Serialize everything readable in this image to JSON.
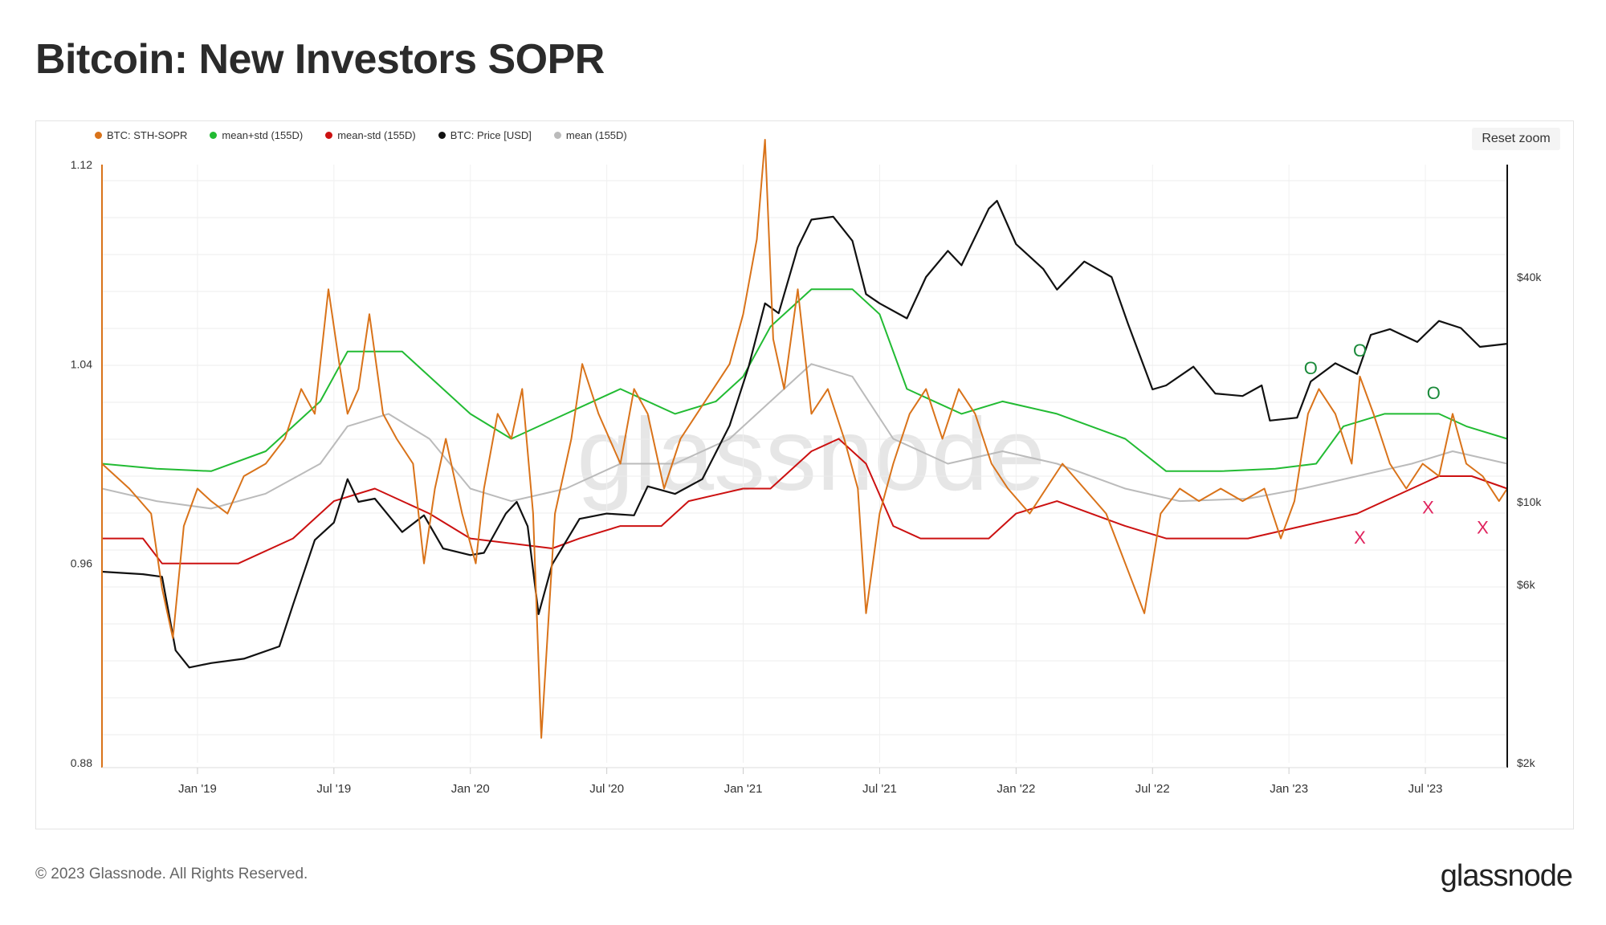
{
  "title": "Bitcoin: New Investors SOPR",
  "reset_zoom_label": "Reset zoom",
  "footer": {
    "copyright": "© 2023 Glassnode. All Rights Reserved.",
    "logo": "glassnode"
  },
  "watermark": "glassnode",
  "legend": [
    {
      "label": "BTC: STH-SOPR",
      "color": "#d9731a"
    },
    {
      "label": "mean+std (155D)",
      "color": "#22bb33"
    },
    {
      "label": "mean-std (155D)",
      "color": "#cc1111"
    },
    {
      "label": "BTC: Price [USD]",
      "color": "#111111"
    },
    {
      "label": "mean (155D)",
      "color": "#bbbbbb"
    }
  ],
  "chart_data": {
    "type": "line",
    "title": "Bitcoin: New Investors SOPR",
    "x_ticks": [
      "Jan '19",
      "Jul '19",
      "Jan '20",
      "Jul '20",
      "Jan '21",
      "Jul '21",
      "Jan '22",
      "Jul '22",
      "Jan '23",
      "Jul '23"
    ],
    "x_range": [
      2018.6,
      2023.75
    ],
    "left_axis": {
      "ticks": [
        "0.88",
        "0.96",
        "1.04",
        "1.12"
      ],
      "values": [
        0.88,
        0.96,
        1.04,
        1.12
      ],
      "range": [
        0.88,
        1.12
      ]
    },
    "right_axis": {
      "scale": "log",
      "ticks": [
        "$2k",
        "$6k",
        "$10k",
        "$40k"
      ],
      "values": [
        2000,
        6000,
        10000,
        40000
      ]
    },
    "series": [
      {
        "name": "BTC: STH-SOPR",
        "axis": "left",
        "color": "#d9731a",
        "points": [
          [
            2018.6,
            1.0
          ],
          [
            2018.7,
            0.99
          ],
          [
            2018.78,
            0.98
          ],
          [
            2018.82,
            0.95
          ],
          [
            2018.86,
            0.93
          ],
          [
            2018.9,
            0.975
          ],
          [
            2018.95,
            0.99
          ],
          [
            2019.0,
            0.985
          ],
          [
            2019.06,
            0.98
          ],
          [
            2019.12,
            0.995
          ],
          [
            2019.2,
            1.0
          ],
          [
            2019.27,
            1.01
          ],
          [
            2019.33,
            1.03
          ],
          [
            2019.38,
            1.02
          ],
          [
            2019.43,
            1.07
          ],
          [
            2019.47,
            1.04
          ],
          [
            2019.5,
            1.02
          ],
          [
            2019.54,
            1.03
          ],
          [
            2019.58,
            1.06
          ],
          [
            2019.63,
            1.02
          ],
          [
            2019.68,
            1.01
          ],
          [
            2019.74,
            1.0
          ],
          [
            2019.78,
            0.96
          ],
          [
            2019.82,
            0.99
          ],
          [
            2019.86,
            1.01
          ],
          [
            2019.92,
            0.98
          ],
          [
            2019.97,
            0.96
          ],
          [
            2020.0,
            0.99
          ],
          [
            2020.05,
            1.02
          ],
          [
            2020.1,
            1.01
          ],
          [
            2020.14,
            1.03
          ],
          [
            2020.18,
            0.98
          ],
          [
            2020.21,
            0.89
          ],
          [
            2020.26,
            0.98
          ],
          [
            2020.32,
            1.01
          ],
          [
            2020.36,
            1.04
          ],
          [
            2020.42,
            1.02
          ],
          [
            2020.5,
            1.0
          ],
          [
            2020.55,
            1.03
          ],
          [
            2020.6,
            1.02
          ],
          [
            2020.66,
            0.99
          ],
          [
            2020.72,
            1.01
          ],
          [
            2020.78,
            1.02
          ],
          [
            2020.84,
            1.03
          ],
          [
            2020.9,
            1.04
          ],
          [
            2020.95,
            1.06
          ],
          [
            2021.0,
            1.09
          ],
          [
            2021.03,
            1.13
          ],
          [
            2021.06,
            1.05
          ],
          [
            2021.1,
            1.03
          ],
          [
            2021.15,
            1.07
          ],
          [
            2021.2,
            1.02
          ],
          [
            2021.26,
            1.03
          ],
          [
            2021.32,
            1.01
          ],
          [
            2021.37,
            0.99
          ],
          [
            2021.4,
            0.94
          ],
          [
            2021.45,
            0.98
          ],
          [
            2021.5,
            1.0
          ],
          [
            2021.56,
            1.02
          ],
          [
            2021.62,
            1.03
          ],
          [
            2021.68,
            1.01
          ],
          [
            2021.74,
            1.03
          ],
          [
            2021.8,
            1.02
          ],
          [
            2021.86,
            1.0
          ],
          [
            2021.92,
            0.99
          ],
          [
            2022.0,
            0.98
          ],
          [
            2022.06,
            0.99
          ],
          [
            2022.12,
            1.0
          ],
          [
            2022.2,
            0.99
          ],
          [
            2022.28,
            0.98
          ],
          [
            2022.35,
            0.96
          ],
          [
            2022.42,
            0.94
          ],
          [
            2022.48,
            0.98
          ],
          [
            2022.55,
            0.99
          ],
          [
            2022.62,
            0.985
          ],
          [
            2022.7,
            0.99
          ],
          [
            2022.78,
            0.985
          ],
          [
            2022.86,
            0.99
          ],
          [
            2022.92,
            0.97
          ],
          [
            2022.97,
            0.985
          ],
          [
            2023.02,
            1.02
          ],
          [
            2023.06,
            1.03
          ],
          [
            2023.12,
            1.02
          ],
          [
            2023.18,
            1.0
          ],
          [
            2023.21,
            1.035
          ],
          [
            2023.26,
            1.02
          ],
          [
            2023.32,
            1.0
          ],
          [
            2023.38,
            0.99
          ],
          [
            2023.44,
            1.0
          ],
          [
            2023.5,
            0.995
          ],
          [
            2023.55,
            1.02
          ],
          [
            2023.6,
            1.0
          ],
          [
            2023.66,
            0.995
          ],
          [
            2023.72,
            0.985
          ],
          [
            2023.75,
            0.99
          ]
        ]
      },
      {
        "name": "mean+std (155D)",
        "axis": "left",
        "color": "#22bb33",
        "points": [
          [
            2018.6,
            1.0
          ],
          [
            2018.8,
            0.998
          ],
          [
            2019.0,
            0.997
          ],
          [
            2019.2,
            1.005
          ],
          [
            2019.4,
            1.025
          ],
          [
            2019.5,
            1.045
          ],
          [
            2019.7,
            1.045
          ],
          [
            2019.8,
            1.035
          ],
          [
            2019.95,
            1.02
          ],
          [
            2020.1,
            1.01
          ],
          [
            2020.3,
            1.02
          ],
          [
            2020.5,
            1.03
          ],
          [
            2020.7,
            1.02
          ],
          [
            2020.85,
            1.025
          ],
          [
            2020.95,
            1.035
          ],
          [
            2021.05,
            1.055
          ],
          [
            2021.2,
            1.07
          ],
          [
            2021.35,
            1.07
          ],
          [
            2021.45,
            1.06
          ],
          [
            2021.55,
            1.03
          ],
          [
            2021.75,
            1.02
          ],
          [
            2021.9,
            1.025
          ],
          [
            2022.1,
            1.02
          ],
          [
            2022.35,
            1.01
          ],
          [
            2022.5,
            0.997
          ],
          [
            2022.7,
            0.997
          ],
          [
            2022.9,
            0.998
          ],
          [
            2023.05,
            1.0
          ],
          [
            2023.15,
            1.015
          ],
          [
            2023.3,
            1.02
          ],
          [
            2023.5,
            1.02
          ],
          [
            2023.6,
            1.015
          ],
          [
            2023.75,
            1.01
          ]
        ]
      },
      {
        "name": "mean (155D)",
        "axis": "left",
        "color": "#bbbbbb",
        "points": [
          [
            2018.6,
            0.99
          ],
          [
            2018.8,
            0.985
          ],
          [
            2019.0,
            0.982
          ],
          [
            2019.2,
            0.988
          ],
          [
            2019.4,
            1.0
          ],
          [
            2019.5,
            1.015
          ],
          [
            2019.65,
            1.02
          ],
          [
            2019.8,
            1.01
          ],
          [
            2019.95,
            0.99
          ],
          [
            2020.1,
            0.985
          ],
          [
            2020.3,
            0.99
          ],
          [
            2020.5,
            1.0
          ],
          [
            2020.7,
            1.0
          ],
          [
            2020.9,
            1.01
          ],
          [
            2021.05,
            1.025
          ],
          [
            2021.2,
            1.04
          ],
          [
            2021.35,
            1.035
          ],
          [
            2021.5,
            1.01
          ],
          [
            2021.7,
            1.0
          ],
          [
            2021.9,
            1.005
          ],
          [
            2022.1,
            1.0
          ],
          [
            2022.35,
            0.99
          ],
          [
            2022.55,
            0.985
          ],
          [
            2022.8,
            0.986
          ],
          [
            2023.0,
            0.99
          ],
          [
            2023.2,
            0.995
          ],
          [
            2023.4,
            1.0
          ],
          [
            2023.55,
            1.005
          ],
          [
            2023.75,
            1.0
          ]
        ]
      },
      {
        "name": "mean-std (155D)",
        "axis": "left",
        "color": "#cc1111",
        "points": [
          [
            2018.6,
            0.97
          ],
          [
            2018.75,
            0.97
          ],
          [
            2018.82,
            0.96
          ],
          [
            2019.1,
            0.96
          ],
          [
            2019.3,
            0.97
          ],
          [
            2019.45,
            0.985
          ],
          [
            2019.6,
            0.99
          ],
          [
            2019.8,
            0.98
          ],
          [
            2019.95,
            0.97
          ],
          [
            2020.1,
            0.968
          ],
          [
            2020.25,
            0.966
          ],
          [
            2020.35,
            0.97
          ],
          [
            2020.5,
            0.975
          ],
          [
            2020.65,
            0.975
          ],
          [
            2020.75,
            0.985
          ],
          [
            2020.95,
            0.99
          ],
          [
            2021.05,
            0.99
          ],
          [
            2021.2,
            1.005
          ],
          [
            2021.3,
            1.01
          ],
          [
            2021.4,
            1.0
          ],
          [
            2021.5,
            0.975
          ],
          [
            2021.6,
            0.97
          ],
          [
            2021.75,
            0.97
          ],
          [
            2021.85,
            0.97
          ],
          [
            2021.95,
            0.98
          ],
          [
            2022.1,
            0.985
          ],
          [
            2022.35,
            0.975
          ],
          [
            2022.5,
            0.97
          ],
          [
            2022.8,
            0.97
          ],
          [
            2023.0,
            0.975
          ],
          [
            2023.2,
            0.98
          ],
          [
            2023.4,
            0.99
          ],
          [
            2023.5,
            0.995
          ],
          [
            2023.62,
            0.995
          ],
          [
            2023.75,
            0.99
          ]
        ]
      },
      {
        "name": "BTC: Price [USD]",
        "axis": "right",
        "color": "#111111",
        "points": [
          [
            2018.6,
            6500
          ],
          [
            2018.75,
            6400
          ],
          [
            2018.82,
            6300
          ],
          [
            2018.87,
            4000
          ],
          [
            2018.92,
            3600
          ],
          [
            2019.0,
            3700
          ],
          [
            2019.12,
            3800
          ],
          [
            2019.25,
            4100
          ],
          [
            2019.3,
            5300
          ],
          [
            2019.38,
            7900
          ],
          [
            2019.45,
            8800
          ],
          [
            2019.5,
            11500
          ],
          [
            2019.54,
            10000
          ],
          [
            2019.6,
            10200
          ],
          [
            2019.7,
            8300
          ],
          [
            2019.78,
            9200
          ],
          [
            2019.85,
            7500
          ],
          [
            2019.95,
            7200
          ],
          [
            2020.0,
            7300
          ],
          [
            2020.08,
            9300
          ],
          [
            2020.12,
            10000
          ],
          [
            2020.16,
            8600
          ],
          [
            2020.2,
            5000
          ],
          [
            2020.25,
            6800
          ],
          [
            2020.35,
            9000
          ],
          [
            2020.45,
            9300
          ],
          [
            2020.55,
            9200
          ],
          [
            2020.6,
            11000
          ],
          [
            2020.7,
            10500
          ],
          [
            2020.8,
            11500
          ],
          [
            2020.9,
            16000
          ],
          [
            2020.97,
            23000
          ],
          [
            2021.03,
            34000
          ],
          [
            2021.08,
            32000
          ],
          [
            2021.15,
            48000
          ],
          [
            2021.2,
            57000
          ],
          [
            2021.28,
            58000
          ],
          [
            2021.35,
            50000
          ],
          [
            2021.4,
            36000
          ],
          [
            2021.45,
            34000
          ],
          [
            2021.55,
            31000
          ],
          [
            2021.62,
            40000
          ],
          [
            2021.7,
            47000
          ],
          [
            2021.75,
            43000
          ],
          [
            2021.85,
            61000
          ],
          [
            2021.88,
            64000
          ],
          [
            2021.95,
            49000
          ],
          [
            2022.05,
            42000
          ],
          [
            2022.1,
            37000
          ],
          [
            2022.2,
            44000
          ],
          [
            2022.3,
            40000
          ],
          [
            2022.36,
            30000
          ],
          [
            2022.45,
            20000
          ],
          [
            2022.5,
            20500
          ],
          [
            2022.6,
            23000
          ],
          [
            2022.68,
            19500
          ],
          [
            2022.78,
            19200
          ],
          [
            2022.85,
            20500
          ],
          [
            2022.88,
            16500
          ],
          [
            2022.98,
            16800
          ],
          [
            2023.03,
            21000
          ],
          [
            2023.12,
            23500
          ],
          [
            2023.2,
            22000
          ],
          [
            2023.25,
            28000
          ],
          [
            2023.32,
            29000
          ],
          [
            2023.42,
            26800
          ],
          [
            2023.5,
            30500
          ],
          [
            2023.58,
            29200
          ],
          [
            2023.65,
            26000
          ],
          [
            2023.75,
            26500
          ]
        ]
      }
    ],
    "annotations": [
      {
        "text": "O",
        "color": "#1a8a3a",
        "x": 2023.03,
        "y": 1.036
      },
      {
        "text": "O",
        "color": "#1a8a3a",
        "x": 2023.21,
        "y": 1.043
      },
      {
        "text": "O",
        "color": "#1a8a3a",
        "x": 2023.48,
        "y": 1.026
      },
      {
        "text": "X",
        "color": "#e0245e",
        "x": 2023.21,
        "y": 0.968
      },
      {
        "text": "X",
        "color": "#e0245e",
        "x": 2023.46,
        "y": 0.98
      },
      {
        "text": "X",
        "color": "#e0245e",
        "x": 2023.66,
        "y": 0.972
      }
    ]
  }
}
